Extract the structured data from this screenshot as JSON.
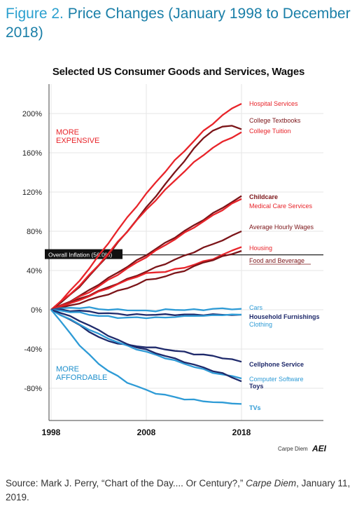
{
  "figure": {
    "label": "Figure 2.",
    "title": "Price Changes (January 1998 to December 2018)"
  },
  "source": {
    "prefix": "Source: Mark J. Perry, “Chart of the Day.... Or Century?,”",
    "publication": "Carpe Diem",
    "date": ", January 11, 2019."
  },
  "branding": {
    "text": "Carpe Diem",
    "logo": "AEI"
  },
  "colors": {
    "red": "#e8242a",
    "dark_red": "#7b1418",
    "light_blue": "#2e9bd6",
    "dark_blue": "#1f2a6b",
    "annotation_red": "#e8242a",
    "annotation_blue": "#1e8fcc"
  },
  "chart_data": {
    "type": "line",
    "title": "Selected US Consumer Goods and Services, Wages",
    "xlabel": "",
    "ylabel": "",
    "x_range": [
      1998,
      2018
    ],
    "ylim": [
      -100,
      220
    ],
    "yticks": [
      200,
      160,
      120,
      80,
      40,
      0,
      -40,
      -80
    ],
    "ytick_labels": [
      "200%",
      "160%",
      "120%",
      "80%",
      "40%",
      "0%",
      "-40%",
      "-80%"
    ],
    "xticks": [
      1998,
      2008,
      2018
    ],
    "xtick_labels": [
      "1998",
      "2008",
      "2018"
    ],
    "reference_line": {
      "label": "Overall Inflation (56.0%)",
      "value": 56.0
    },
    "annotations": [
      {
        "text": "MORE EXPENSIVE",
        "color": "red"
      },
      {
        "text": "MORE AFFORDABLE",
        "color": "blue"
      }
    ],
    "series": [
      {
        "name": "Hospital Services",
        "color": "red",
        "values": [
          0,
          9,
          19,
          30,
          42,
          55,
          68,
          81,
          94,
          106,
          118,
          130,
          141,
          152,
          162,
          172,
          182,
          190,
          198,
          205,
          210
        ]
      },
      {
        "name": "College Textbooks",
        "color": "dark_red",
        "values": [
          0,
          7,
          15,
          24,
          34,
          45,
          56,
          68,
          80,
          92,
          104,
          116,
          128,
          140,
          152,
          164,
          175,
          183,
          186,
          188,
          184
        ]
      },
      {
        "name": "College Tuition",
        "color": "red",
        "values": [
          0,
          8,
          16,
          25,
          35,
          46,
          57,
          69,
          80,
          91,
          102,
          112,
          122,
          132,
          141,
          150,
          158,
          165,
          171,
          176,
          181
        ]
      },
      {
        "name": "Childcare",
        "color": "dark_red",
        "values": [
          0,
          4,
          9,
          14,
          20,
          26,
          32,
          38,
          44,
          50,
          56,
          62,
          68,
          74,
          80,
          86,
          92,
          98,
          104,
          110,
          116
        ]
      },
      {
        "name": "Medical Care Services",
        "color": "red",
        "values": [
          0,
          4,
          8,
          13,
          18,
          24,
          30,
          36,
          42,
          48,
          54,
          60,
          66,
          72,
          78,
          84,
          90,
          96,
          102,
          108,
          113
        ]
      },
      {
        "name": "Average Hourly Wages",
        "color": "dark_red",
        "values": [
          0,
          3,
          7,
          11,
          15,
          19,
          23,
          27,
          31,
          35,
          39,
          43,
          47,
          51,
          55,
          59,
          63,
          67,
          71,
          75,
          80
        ]
      },
      {
        "name": "Housing",
        "color": "red",
        "values": [
          0,
          3,
          6,
          10,
          14,
          18,
          22,
          26,
          30,
          34,
          37,
          38,
          39,
          41,
          43,
          46,
          49,
          52,
          56,
          60,
          64
        ]
      },
      {
        "name": "Food and Beverage",
        "color": "dark_red",
        "values": [
          0,
          2,
          4,
          7,
          10,
          13,
          16,
          19,
          22,
          26,
          30,
          32,
          34,
          37,
          40,
          44,
          48,
          51,
          54,
          57,
          60
        ]
      },
      {
        "name": "Cars",
        "color": "light_blue",
        "values": [
          0,
          1,
          2,
          2,
          2,
          1,
          0,
          0,
          0,
          -1,
          -1,
          -1,
          0,
          0,
          0,
          0,
          0,
          1,
          1,
          1,
          1
        ]
      },
      {
        "name": "Household Furnishings",
        "color": "dark_blue",
        "values": [
          0,
          0,
          -1,
          -1,
          -2,
          -3,
          -4,
          -4,
          -5,
          -5,
          -5,
          -5,
          -5,
          -5,
          -5,
          -5,
          -5,
          -5,
          -5,
          -5,
          -5
        ]
      },
      {
        "name": "Clothing",
        "color": "light_blue",
        "values": [
          0,
          -1,
          -2,
          -3,
          -5,
          -6,
          -7,
          -8,
          -8,
          -8,
          -8,
          -8,
          -8,
          -7,
          -7,
          -6,
          -6,
          -6,
          -5,
          -5,
          -5
        ]
      },
      {
        "name": "Cellphone Service",
        "color": "dark_blue",
        "values": [
          0,
          -5,
          -10,
          -16,
          -22,
          -28,
          -32,
          -34,
          -36,
          -37,
          -38,
          -39,
          -40,
          -42,
          -43,
          -45,
          -46,
          -47,
          -49,
          -51,
          -53
        ]
      },
      {
        "name": "Computer Software",
        "color": "light_blue",
        "values": [
          0,
          -5,
          -10,
          -15,
          -20,
          -25,
          -29,
          -33,
          -37,
          -40,
          -43,
          -46,
          -49,
          -52,
          -55,
          -58,
          -61,
          -64,
          -66,
          -68,
          -70
        ]
      },
      {
        "name": "Toys",
        "color": "dark_blue",
        "values": [
          0,
          -3,
          -7,
          -11,
          -16,
          -21,
          -26,
          -31,
          -35,
          -38,
          -41,
          -44,
          -47,
          -50,
          -53,
          -56,
          -59,
          -62,
          -65,
          -69,
          -73
        ]
      },
      {
        "name": "TVs",
        "color": "light_blue",
        "values": [
          0,
          -12,
          -24,
          -36,
          -46,
          -55,
          -62,
          -68,
          -74,
          -78,
          -82,
          -85,
          -87,
          -89,
          -91,
          -92,
          -93,
          -94,
          -95,
          -95,
          -96
        ]
      }
    ]
  }
}
